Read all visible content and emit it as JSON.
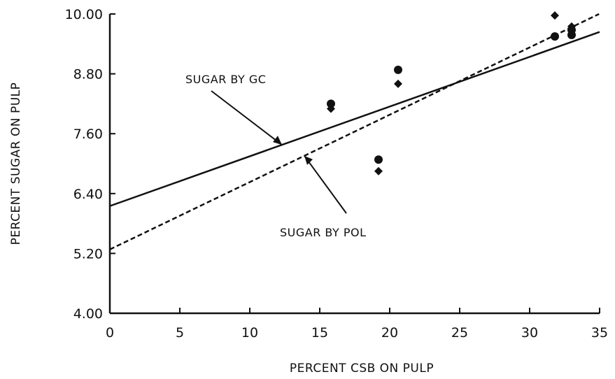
{
  "chart_data": {
    "type": "scatter",
    "xlabel": "PERCENT CSB ON PULP",
    "ylabel": "PERCENT SUGAR ON PULP",
    "xlim": [
      0,
      35
    ],
    "ylim": [
      4.0,
      10.0
    ],
    "xticks": [
      0,
      5,
      10,
      15,
      20,
      25,
      30,
      35
    ],
    "yticks": [
      4.0,
      5.2,
      6.4,
      7.6,
      8.8,
      10.0
    ],
    "ytick_labels": [
      "4.00",
      "5.20",
      "6.40",
      "7.60",
      "8.80",
      "10.00"
    ],
    "grid": false,
    "series": [
      {
        "name": "SUGAR BY GC",
        "marker": "circle",
        "line_style": "solid",
        "points": [
          [
            15.8,
            8.2
          ],
          [
            19.2,
            7.08
          ],
          [
            20.6,
            8.88
          ],
          [
            31.8,
            9.55
          ],
          [
            33.0,
            9.58
          ],
          [
            33.0,
            9.68
          ]
        ],
        "fit": {
          "intercept": 6.15,
          "slope": 0.0997
        }
      },
      {
        "name": "SUGAR BY POL",
        "marker": "diamond",
        "line_style": "dashed",
        "points": [
          [
            15.8,
            8.1
          ],
          [
            19.2,
            6.85
          ],
          [
            20.6,
            8.6
          ],
          [
            31.8,
            9.97
          ],
          [
            31.8,
            9.55
          ],
          [
            33.0,
            9.75
          ]
        ],
        "fit": {
          "intercept": 5.28,
          "slope": 0.135
        }
      }
    ],
    "annotations": [
      {
        "text": "SUGAR BY GC",
        "series": 0
      },
      {
        "text": "SUGAR BY POL",
        "series": 1
      }
    ]
  }
}
